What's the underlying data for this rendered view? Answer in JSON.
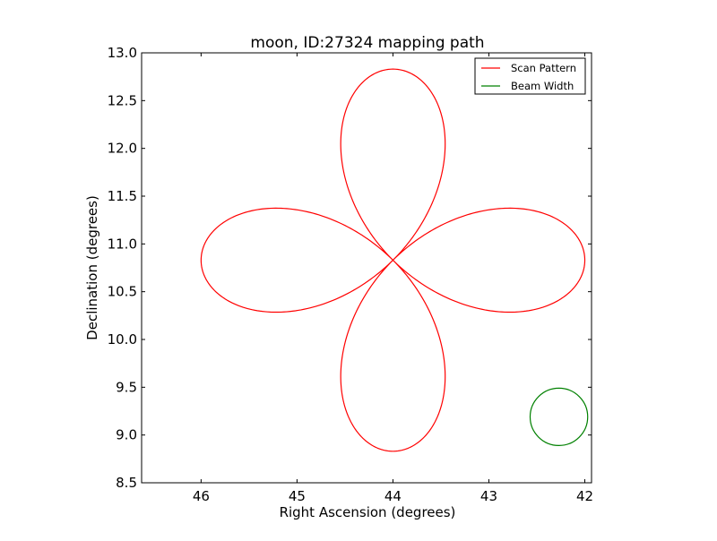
{
  "chart_data": {
    "type": "line",
    "title": "moon, ID:27324 mapping path",
    "xlabel": "Right Ascension (degrees)",
    "ylabel": "Declination (degrees)",
    "xlim": [
      46.62,
      41.93
    ],
    "ylim": [
      8.5,
      13.0
    ],
    "x_ticks": [
      46,
      45,
      44,
      43,
      42
    ],
    "x_tick_labels": [
      "46",
      "45",
      "44",
      "43",
      "42"
    ],
    "y_ticks": [
      8.5,
      9.0,
      9.5,
      10.0,
      10.5,
      11.0,
      11.5,
      12.0,
      12.5,
      13.0
    ],
    "y_tick_labels": [
      "8.5",
      "9.0",
      "9.5",
      "10.0",
      "10.5",
      "11.0",
      "11.5",
      "12.0",
      "12.5",
      "13.0"
    ],
    "grid": false,
    "legend_position": "top-right",
    "series": [
      {
        "name": "Scan Pattern",
        "color": "#ff0000",
        "shape": "four-petal rose",
        "center": [
          44.0,
          10.83
        ],
        "petal_length": 2.0
      },
      {
        "name": "Beam Width",
        "color": "#008000",
        "shape": "circle",
        "center": [
          42.27,
          9.19
        ],
        "radius": 0.3
      }
    ]
  }
}
